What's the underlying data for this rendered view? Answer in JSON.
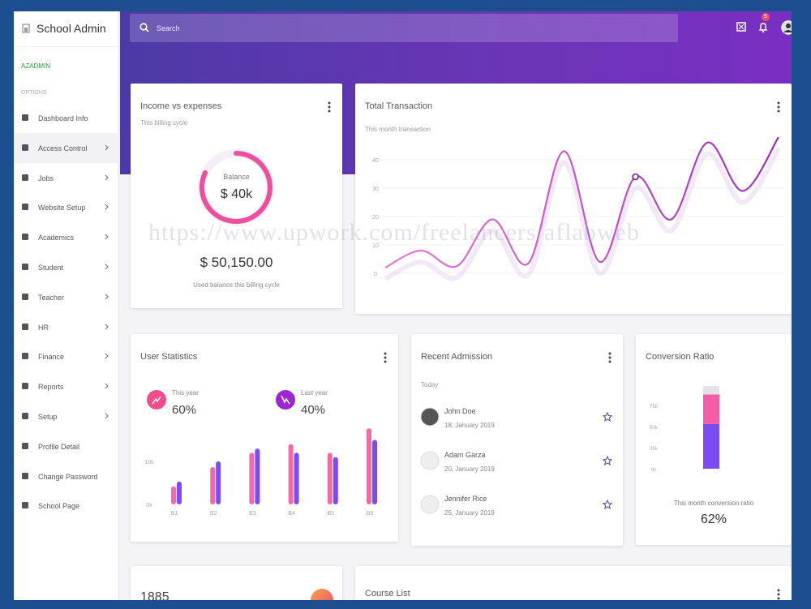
{
  "sidebar": {
    "brand": "School Admin",
    "user": "AZADMIN",
    "section": "OPTIONS",
    "menu": [
      {
        "label": "Dashboard Info",
        "submenu": false
      },
      {
        "label": "Access Control",
        "submenu": true,
        "active": true
      },
      {
        "label": "Jobs",
        "submenu": true
      },
      {
        "label": "Website Setup",
        "submenu": true
      },
      {
        "label": "Academics",
        "submenu": true
      },
      {
        "label": "Student",
        "submenu": true
      },
      {
        "label": "Teacher",
        "submenu": true
      },
      {
        "label": "HR",
        "submenu": true
      },
      {
        "label": "Finance",
        "submenu": true
      },
      {
        "label": "Reports",
        "submenu": true
      },
      {
        "label": "Setup",
        "submenu": true
      },
      {
        "label": "Profile Detail",
        "submenu": false
      },
      {
        "label": "Change Password",
        "submenu": false
      },
      {
        "label": "School Page",
        "submenu": false
      }
    ]
  },
  "header": {
    "search_placeholder": "Search",
    "notifications": "5"
  },
  "watermark": "https://www.upwork.com/freelancers/aflabweb",
  "income_card": {
    "title": "Income vs expenses",
    "subtitle": "This billing cycle",
    "ring_label": "Balance",
    "ring_value": "$ 40k",
    "amount": "$ 50,150.00",
    "caption": "Used balance this billing cycle"
  },
  "transaction_card": {
    "title": "Total Transaction",
    "subtitle": "This month transaction",
    "chart": {
      "type": "line",
      "values": [
        2,
        8,
        2.5,
        19,
        3.5,
        43,
        4,
        34,
        19,
        46,
        29,
        48
      ],
      "color": "#a02cc0",
      "marker_index": 7,
      "ylim": [
        -5,
        50
      ],
      "yticks": [
        0,
        10,
        20,
        30,
        40
      ],
      "grid": true
    }
  },
  "user_stats": {
    "title": "User Statistics",
    "stats": [
      {
        "label": "This year",
        "value": "60%",
        "color": "#ef4d8a"
      },
      {
        "label": "Last year",
        "value": "40%",
        "color": "#9c27d0"
      }
    ],
    "chart": {
      "type": "bar",
      "categories": [
        "B1",
        "B2",
        "B3",
        "B4",
        "B5",
        "B6"
      ],
      "series": [
        {
          "color": "#f06aa8",
          "values": [
            4.2,
            8.7,
            12,
            14,
            12,
            17.7
          ]
        },
        {
          "color": "#7b4cf0",
          "values": [
            5.3,
            10,
            13,
            12,
            11,
            15
          ]
        }
      ],
      "ylim": [
        0,
        20
      ],
      "yticks": [
        {
          "value": 0,
          "label": "0k"
        },
        {
          "value": 10,
          "label": "10k"
        }
      ]
    }
  },
  "recent_admission": {
    "title": "Recent Admission",
    "subtitle": "Today",
    "items": [
      {
        "name": "John Doe",
        "date": "18, January 2019"
      },
      {
        "name": "Adam Garza",
        "date": "20, January 2019"
      },
      {
        "name": "Jennifer Rice",
        "date": "25, January 2019"
      }
    ]
  },
  "conversion": {
    "title": "Conversion Ratio",
    "chart": {
      "type": "stacked_bar",
      "series": [
        {
          "color": "#7b4cf0",
          "values": [
            53
          ]
        },
        {
          "color": "#f45ca6",
          "values": [
            35
          ]
        },
        {
          "color": "#e4e4e8",
          "values": [
            10
          ]
        }
      ],
      "ylim": [
        0,
        100
      ],
      "yticks": [
        {
          "value": 0,
          "label": "0k"
        },
        {
          "value": 25,
          "label": "25k"
        },
        {
          "value": 50,
          "label": "50k"
        },
        {
          "value": 75,
          "label": "75k"
        }
      ]
    },
    "caption": "This month conversion ratio",
    "value": "62%"
  },
  "bottom": {
    "counter": "1885",
    "course_title": "Course List"
  }
}
